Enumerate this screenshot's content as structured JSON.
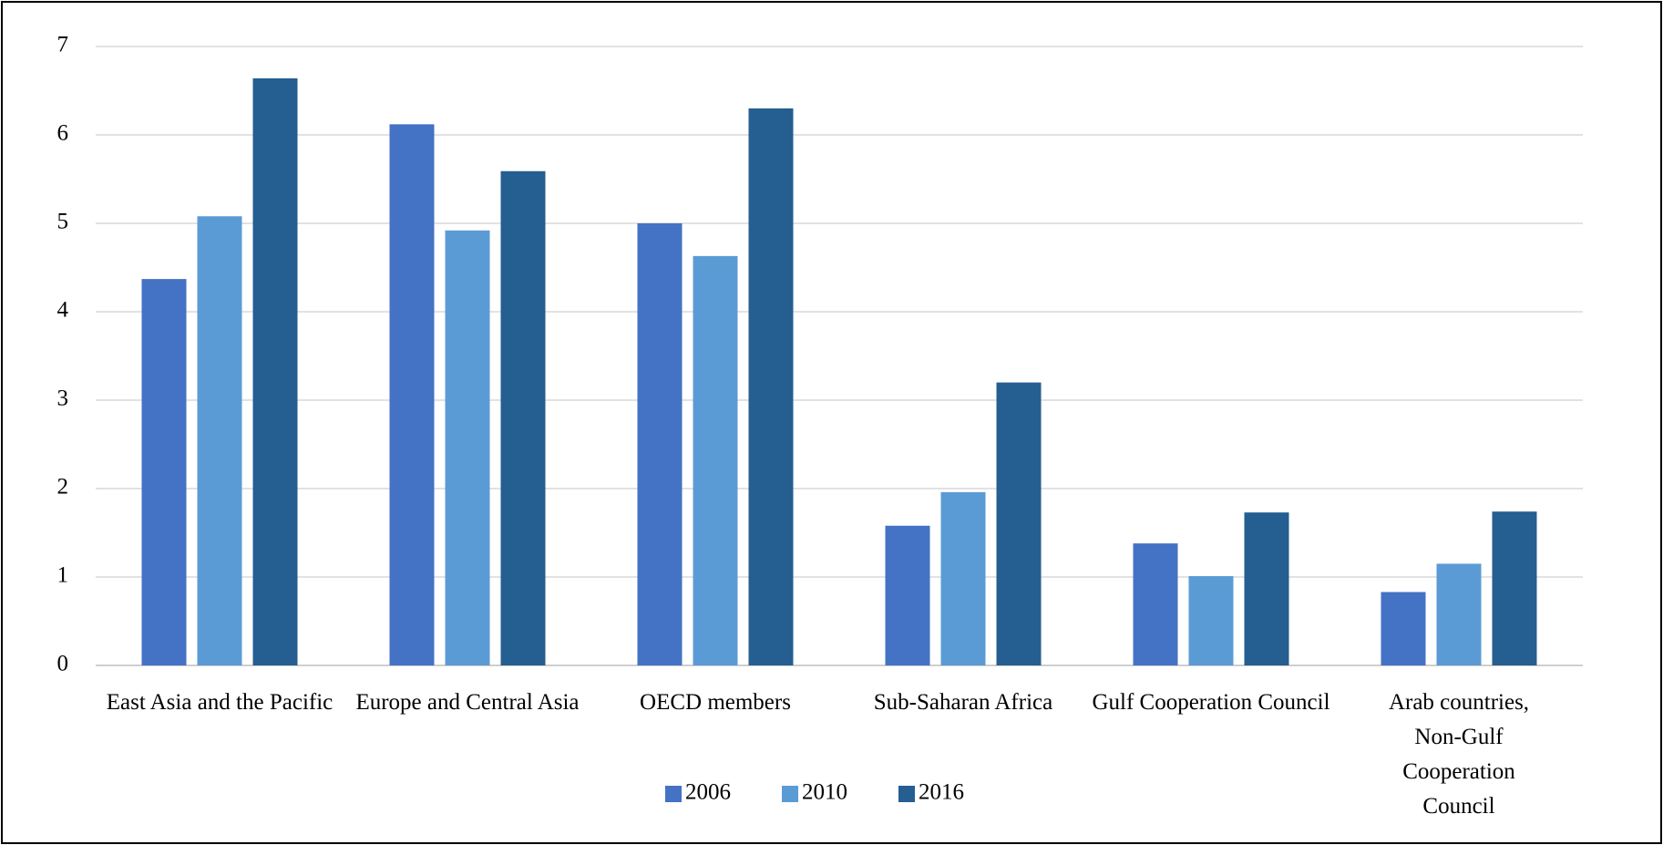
{
  "chart_data": {
    "type": "bar",
    "categories": [
      "East Asia and the Pacific",
      "Europe and Central Asia",
      "OECD members",
      "Sub-Saharan Africa",
      "Gulf Cooperation Council",
      "Arab countries, Non-Gulf Cooperation Council"
    ],
    "series": [
      {
        "name": "2006",
        "color": "#4472c4",
        "values": [
          4.37,
          6.12,
          5.0,
          1.58,
          1.38,
          0.83
        ]
      },
      {
        "name": "2010",
        "color": "#5b9bd5",
        "values": [
          5.08,
          4.92,
          4.63,
          1.96,
          1.01,
          1.15
        ]
      },
      {
        "name": "2016",
        "color": "#255e91",
        "values": [
          6.64,
          5.59,
          6.3,
          3.2,
          1.73,
          1.74
        ]
      }
    ],
    "ylim": [
      0,
      7
    ],
    "yticks": [
      0,
      1,
      2,
      3,
      4,
      5,
      6,
      7
    ],
    "grid": true,
    "legend": "bottom"
  }
}
